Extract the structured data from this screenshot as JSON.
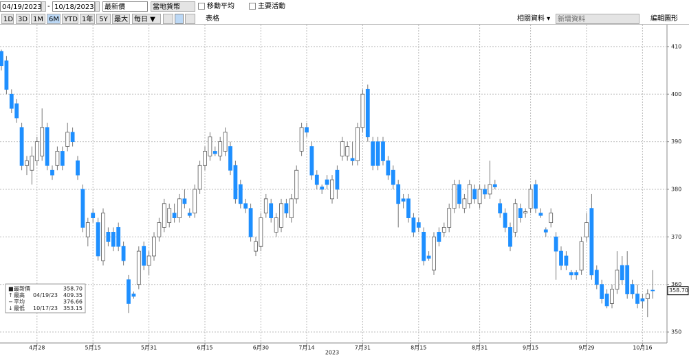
{
  "toolbar": {
    "start_date": "04/19/2023",
    "end_date": "10/18/2023",
    "price_field": "最新價",
    "currency": "當地貨幣",
    "moving_average": "移動平均",
    "key_events": "主要活動",
    "ranges": [
      "1D",
      "3D",
      "1M",
      "6M",
      "YTD",
      "1年",
      "5Y",
      "最大"
    ],
    "frequency": "每日 ▼",
    "table": "表格",
    "related": "相關資料 ▾",
    "add_data": "新增資料",
    "edit_chart": "編輯圖形"
  },
  "chart_data": {
    "type": "candlestick",
    "up_color": "#ffffff",
    "down_color": "#1e8fff",
    "grid": true,
    "categories": [
      null,
      null,
      null,
      null,
      null,
      null,
      null,
      "4月28",
      null,
      null,
      null,
      null,
      null,
      null,
      null,
      null,
      null,
      null,
      "5月15",
      null,
      null,
      null,
      null,
      null,
      null,
      null,
      null,
      null,
      null,
      "5月31",
      null,
      null,
      null,
      null,
      null,
      null,
      null,
      null,
      null,
      null,
      "6月15",
      null,
      null,
      null,
      null,
      null,
      null,
      null,
      null,
      null,
      null,
      "6月30",
      null,
      null,
      null,
      null,
      null,
      null,
      null,
      null,
      "7月14",
      null,
      null,
      null,
      null,
      null,
      null,
      null,
      null,
      null,
      null,
      "7月31",
      null,
      null,
      null,
      null,
      null,
      null,
      null,
      null,
      null,
      null,
      "8月15",
      null,
      null,
      null,
      null,
      null,
      null,
      null,
      null,
      null,
      null,
      null,
      "8月31",
      null,
      null,
      null,
      null,
      null,
      null,
      null,
      null,
      null,
      "9月15",
      null,
      null,
      null,
      null,
      null,
      null,
      null,
      null,
      null,
      null,
      "9月29",
      null,
      null,
      null,
      null,
      null,
      null,
      null,
      null,
      null,
      null,
      "10月16",
      null,
      null
    ],
    "x_label": "2023",
    "open": [
      409,
      407,
      400,
      398,
      393,
      385,
      384,
      386,
      387,
      393,
      384,
      385,
      388,
      389,
      392,
      386,
      380,
      370,
      375,
      373,
      365,
      371,
      371,
      372,
      368,
      361,
      358,
      360,
      368,
      364,
      366,
      370,
      372,
      373,
      375,
      374,
      378,
      375,
      375,
      380,
      385,
      387,
      388,
      387,
      388,
      389,
      385,
      381,
      377,
      376,
      367,
      368,
      375,
      377,
      371,
      372,
      377,
      374,
      378,
      388,
      393,
      389,
      383,
      380.5,
      382,
      378,
      384,
      387,
      387,
      386.5,
      386,
      393,
      401,
      390,
      390,
      390,
      386,
      384,
      381,
      378,
      378,
      374,
      373,
      371,
      366,
      363,
      371,
      371,
      372,
      376,
      381,
      376,
      377,
      380,
      377,
      380,
      379,
      381,
      377,
      375,
      372,
      371,
      376,
      375,
      376,
      381,
      375,
      371.5,
      373,
      370,
      367,
      366,
      362.5,
      362.5,
      363,
      370,
      376,
      363,
      360,
      358,
      356,
      359,
      364,
      364,
      360,
      358,
      357,
      357,
      358.8
    ],
    "high": [
      409.35,
      408,
      401,
      399,
      394,
      387,
      389,
      391,
      397,
      394,
      385,
      389,
      389,
      394,
      393,
      387,
      381,
      374,
      376,
      374,
      376,
      372,
      372,
      373,
      369,
      362,
      358.5,
      368,
      369,
      367,
      371,
      374,
      378,
      377,
      377,
      379,
      380,
      376,
      381,
      386,
      389,
      392,
      389,
      391,
      393,
      390,
      386,
      382,
      378,
      377,
      370,
      375,
      379,
      378,
      375,
      378,
      378,
      379,
      385,
      394,
      394,
      390,
      384,
      381,
      383,
      383,
      385,
      391,
      390,
      390,
      394,
      401,
      402,
      391,
      391,
      391,
      387,
      385,
      382,
      379,
      379,
      375,
      374,
      372,
      367,
      371,
      372,
      373,
      377,
      382,
      382,
      379,
      382,
      381,
      381,
      381,
      386,
      382,
      378,
      376,
      373,
      378,
      377,
      376,
      381,
      382,
      376,
      372,
      376,
      371,
      368,
      367,
      363,
      363,
      370,
      375,
      379,
      364,
      361,
      359,
      360,
      367,
      366,
      367,
      361,
      360,
      358,
      359,
      363
    ],
    "low": [
      405,
      400,
      396,
      394,
      384,
      383,
      381,
      385,
      386,
      384,
      382,
      384,
      384,
      388,
      389,
      382,
      371,
      368,
      373,
      365,
      364,
      368,
      367,
      367,
      364,
      354,
      357,
      359,
      363,
      362,
      365,
      369,
      371,
      372,
      373,
      373,
      376,
      374,
      374,
      379,
      384,
      386,
      387,
      386,
      387,
      383,
      377,
      376,
      375,
      369,
      366,
      367,
      374,
      373,
      370,
      371,
      374,
      373,
      377,
      387,
      391,
      382,
      380,
      379,
      380,
      377,
      378,
      386,
      386,
      385,
      385,
      392,
      390,
      384,
      384,
      385,
      382,
      380,
      372,
      376,
      373,
      370,
      371,
      364,
      365,
      362,
      368,
      370,
      371,
      375,
      376,
      375,
      376,
      377,
      376,
      378,
      378,
      380,
      374,
      371,
      367,
      370,
      373,
      374,
      375,
      375,
      374,
      370,
      372,
      361,
      363,
      363,
      361,
      361,
      362,
      369,
      361,
      359,
      356,
      355,
      355,
      358,
      360,
      357,
      357,
      355,
      355,
      353.15,
      357
    ],
    "close": [
      406,
      401,
      397,
      395,
      385,
      386,
      387,
      390,
      393,
      385,
      383,
      388,
      385,
      392,
      390,
      383,
      372,
      373,
      374,
      366,
      375,
      369,
      368,
      368,
      365,
      356,
      357.5,
      367,
      364,
      366,
      370,
      373,
      377,
      376,
      374,
      378,
      377,
      374.5,
      380,
      385,
      388,
      391,
      387.5,
      390,
      392,
      384,
      378,
      377,
      376,
      370,
      369,
      374,
      378,
      374,
      374,
      377,
      375,
      378,
      384,
      393,
      392,
      383,
      381,
      380,
      381,
      382,
      380,
      390,
      389,
      386,
      393,
      400,
      391,
      385,
      385,
      386,
      383,
      381,
      377,
      377.5,
      374,
      371,
      372,
      365,
      365.5,
      370,
      369,
      372,
      376,
      381,
      377,
      378,
      381,
      378,
      380,
      379,
      381,
      380.5,
      375,
      372,
      368,
      377,
      374,
      375.3,
      380,
      376,
      374.5,
      371,
      375,
      367,
      364,
      364,
      362,
      362,
      369,
      373,
      362,
      360,
      357,
      355.5,
      359,
      363,
      361,
      358,
      358,
      356,
      356.5,
      358,
      358.7
    ],
    "ylim": [
      347.7,
      414.6
    ],
    "yticks": [
      350,
      360,
      370,
      380,
      390,
      400,
      410
    ],
    "legend": [
      {
        "name": "最新價",
        "value": "358.70"
      },
      {
        "name": "最高",
        "date": "04/19/23",
        "value": "409.35"
      },
      {
        "name": "平均",
        "value": "376.66"
      },
      {
        "name": "最低",
        "date": "10/17/23",
        "value": "353.15"
      }
    ]
  }
}
